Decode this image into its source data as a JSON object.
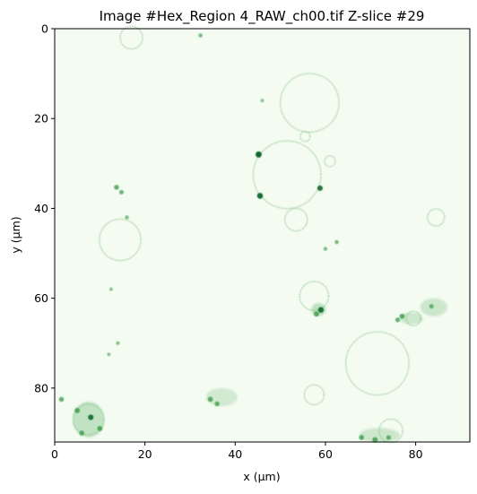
{
  "figure": {
    "title": "Image #Hex_Region 4_RAW_ch00.tif Z-slice #29",
    "xlabel": "x (μm)",
    "ylabel": "y (μm)",
    "colormap": "Greens",
    "colors": {
      "background": "#f4fbf1",
      "ring": "#7fc47f",
      "spot_dark": "#0b6b2a",
      "spot_mid": "#3fa34d"
    }
  },
  "chart_data": {
    "type": "heatmap",
    "title": "Image #Hex_Region 4_RAW_ch00.tif Z-slice #29",
    "xlabel": "x (μm)",
    "ylabel": "y (μm)",
    "xlim": [
      0,
      92
    ],
    "ylim": [
      92,
      0
    ],
    "x_ticks": [
      0,
      20,
      40,
      60,
      80
    ],
    "y_ticks": [
      0,
      20,
      40,
      60,
      80
    ],
    "grid": false,
    "rings": [
      {
        "cx": 56.5,
        "cy": 16.5,
        "r": 6.5
      },
      {
        "cx": 51.5,
        "cy": 32.5,
        "r": 7.5
      },
      {
        "cx": 14.5,
        "cy": 47,
        "r": 4.6
      },
      {
        "cx": 71.5,
        "cy": 74.5,
        "r": 7
      },
      {
        "cx": 57.5,
        "cy": 59.5,
        "r": 3.2
      },
      {
        "cx": 53.5,
        "cy": 42.5,
        "r": 2.5
      },
      {
        "cx": 84.5,
        "cy": 42,
        "r": 1.9
      },
      {
        "cx": 61,
        "cy": 29.5,
        "r": 1.2
      },
      {
        "cx": 55.5,
        "cy": 24,
        "r": 1.1
      },
      {
        "cx": 17,
        "cy": 2,
        "r": 2.5
      },
      {
        "cx": 57.5,
        "cy": 81.5,
        "r": 2.2
      },
      {
        "cx": 79.5,
        "cy": 64.5,
        "r": 1.6
      },
      {
        "cx": 7.5,
        "cy": 87,
        "r": 3.4
      },
      {
        "cx": 74.5,
        "cy": 89.5,
        "r": 2.6
      }
    ],
    "spots": [
      {
        "x": 45.2,
        "y": 28,
        "v": 1.0
      },
      {
        "x": 45.5,
        "y": 37.2,
        "v": 0.95
      },
      {
        "x": 58.8,
        "y": 35.5,
        "v": 0.85
      },
      {
        "x": 13.7,
        "y": 35.3,
        "v": 0.7
      },
      {
        "x": 14.8,
        "y": 36.4,
        "v": 0.6
      },
      {
        "x": 59,
        "y": 62.6,
        "v": 0.9
      },
      {
        "x": 58,
        "y": 63.5,
        "v": 0.8
      },
      {
        "x": 77,
        "y": 64,
        "v": 0.75
      },
      {
        "x": 76,
        "y": 64.8,
        "v": 0.65
      },
      {
        "x": 83.5,
        "y": 61.8,
        "v": 0.6
      },
      {
        "x": 34.5,
        "y": 82.5,
        "v": 0.75
      },
      {
        "x": 36,
        "y": 83.5,
        "v": 0.7
      },
      {
        "x": 5,
        "y": 85,
        "v": 0.8
      },
      {
        "x": 8,
        "y": 86.5,
        "v": 0.85
      },
      {
        "x": 10,
        "y": 89,
        "v": 0.8
      },
      {
        "x": 6,
        "y": 90,
        "v": 0.75
      },
      {
        "x": 68,
        "y": 91,
        "v": 0.75
      },
      {
        "x": 71,
        "y": 91.5,
        "v": 0.8
      },
      {
        "x": 74,
        "y": 91,
        "v": 0.65
      },
      {
        "x": 1.5,
        "y": 82.5,
        "v": 0.7
      },
      {
        "x": 32.3,
        "y": 1.5,
        "v": 0.5
      },
      {
        "x": 62.5,
        "y": 47.5,
        "v": 0.5
      },
      {
        "x": 60,
        "y": 49,
        "v": 0.45
      },
      {
        "x": 16,
        "y": 42,
        "v": 0.45
      },
      {
        "x": 12.5,
        "y": 58,
        "v": 0.35
      },
      {
        "x": 14,
        "y": 70,
        "v": 0.4
      },
      {
        "x": 12,
        "y": 72.5,
        "v": 0.35
      },
      {
        "x": 46,
        "y": 16,
        "v": 0.35
      }
    ],
    "clusters": [
      {
        "x": 7.5,
        "y": 87,
        "rx": 3.5,
        "ry": 4,
        "v": 0.55
      },
      {
        "x": 37,
        "y": 82,
        "rx": 3.5,
        "ry": 2,
        "v": 0.4
      },
      {
        "x": 84,
        "y": 62,
        "rx": 3,
        "ry": 2,
        "v": 0.45
      },
      {
        "x": 72,
        "y": 90.5,
        "rx": 4.5,
        "ry": 1.6,
        "v": 0.45
      },
      {
        "x": 58.5,
        "y": 62.5,
        "rx": 1.6,
        "ry": 1.4,
        "v": 0.6
      },
      {
        "x": 79,
        "y": 64.5,
        "rx": 2.6,
        "ry": 1.3,
        "v": 0.45
      }
    ]
  }
}
